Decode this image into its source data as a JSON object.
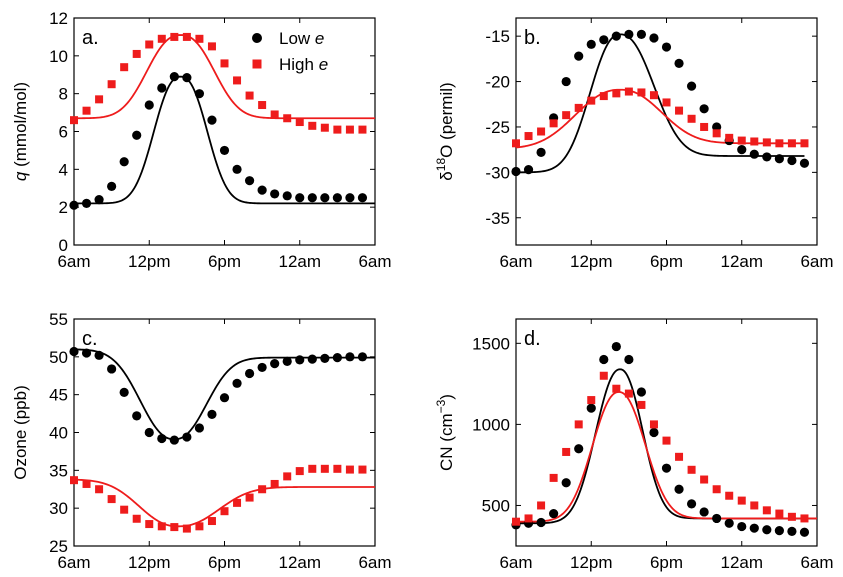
{
  "chart_data": [
    {
      "type": "line",
      "panel_label": "a.",
      "ylabel_parts": [
        "q",
        " (mmol/mol)"
      ],
      "xlim": [
        0,
        24
      ],
      "ylim": [
        0,
        12
      ],
      "yticks": [
        0,
        2,
        4,
        6,
        8,
        10,
        12
      ],
      "xticks": [
        0,
        6,
        12,
        18,
        24
      ],
      "xtick_labels": [
        "6am",
        "12pm",
        "6pm",
        "12am",
        "6am"
      ],
      "legend": {
        "position": "top-right",
        "items": [
          {
            "prefix": "Low ",
            "emph": "e",
            "marker": "circle",
            "color": "#000000"
          },
          {
            "prefix": "High ",
            "emph": "e",
            "marker": "square",
            "color": "#ee1c1c"
          }
        ]
      },
      "series": [
        {
          "id": "low",
          "marker": "circle",
          "color": "#000000",
          "x": [
            0,
            1,
            2,
            3,
            4,
            5,
            6,
            7,
            8,
            9,
            10,
            11,
            12,
            13,
            14,
            15,
            16,
            17,
            18,
            19,
            20,
            21,
            22,
            23
          ],
          "y": [
            2.1,
            2.2,
            2.4,
            3.1,
            4.4,
            5.8,
            7.4,
            8.3,
            8.9,
            8.85,
            8.0,
            6.6,
            5.0,
            4.0,
            3.4,
            2.9,
            2.7,
            2.6,
            2.5,
            2.5,
            2.5,
            2.5,
            2.5,
            2.5
          ]
        },
        {
          "id": "high",
          "marker": "square",
          "color": "#ee1c1c",
          "x": [
            0,
            1,
            2,
            3,
            4,
            5,
            6,
            7,
            8,
            9,
            10,
            11,
            12,
            13,
            14,
            15,
            16,
            17,
            18,
            19,
            20,
            21,
            22,
            23
          ],
          "y": [
            6.6,
            7.1,
            7.7,
            8.5,
            9.4,
            10.1,
            10.6,
            10.9,
            11.0,
            11.0,
            10.9,
            10.5,
            9.6,
            8.7,
            7.9,
            7.4,
            6.9,
            6.7,
            6.5,
            6.3,
            6.2,
            6.1,
            6.1,
            6.1
          ]
        }
      ],
      "fits": [
        {
          "series": "low",
          "color": "#000000",
          "base": 2.2,
          "peak": 8.9,
          "center": 8.5,
          "width": 2.7,
          "power": 2.4,
          "x_end": 24
        },
        {
          "series": "high",
          "color": "#ee1c1c",
          "base": 6.7,
          "peak": 11.1,
          "center": 8.5,
          "width": 3.4,
          "power": 2.4,
          "x_end": 24
        }
      ]
    },
    {
      "type": "line",
      "panel_label": "b.",
      "ylabel_parts": [
        "δ",
        "18",
        "O (permil)"
      ],
      "xlim": [
        0,
        24
      ],
      "ylim": [
        -38,
        -13
      ],
      "yticks": [
        -35,
        -30,
        -25,
        -20,
        -15
      ],
      "xticks": [
        0,
        6,
        12,
        18,
        24
      ],
      "xtick_labels": [
        "6am",
        "12pm",
        "6pm",
        "12am",
        "6am"
      ],
      "series": [
        {
          "id": "low",
          "marker": "circle",
          "color": "#000000",
          "x": [
            0,
            1,
            2,
            3,
            4,
            5,
            6,
            7,
            8,
            9,
            10,
            11,
            12,
            13,
            14,
            15,
            16,
            17,
            18,
            19,
            20,
            21,
            22,
            23
          ],
          "y": [
            -29.9,
            -29.7,
            -27.8,
            -24.0,
            -20.0,
            -17.2,
            -15.9,
            -15.4,
            -15.0,
            -14.8,
            -14.8,
            -15.2,
            -16.2,
            -18.0,
            -20.5,
            -23.0,
            -25.0,
            -26.5,
            -27.5,
            -28.0,
            -28.3,
            -28.5,
            -28.7,
            -29.0
          ]
        },
        {
          "id": "high",
          "marker": "square",
          "color": "#ee1c1c",
          "x": [
            0,
            1,
            2,
            3,
            4,
            5,
            6,
            7,
            8,
            9,
            10,
            11,
            12,
            13,
            14,
            15,
            16,
            17,
            18,
            19,
            20,
            21,
            22,
            23
          ],
          "y": [
            -26.8,
            -26.0,
            -25.5,
            -24.6,
            -23.7,
            -22.9,
            -22.1,
            -21.6,
            -21.3,
            -21.1,
            -21.2,
            -21.5,
            -22.3,
            -23.2,
            -24.1,
            -25.0,
            -25.7,
            -26.2,
            -26.5,
            -26.6,
            -26.7,
            -26.8,
            -26.8,
            -26.8
          ]
        }
      ],
      "fits": [
        {
          "series": "low",
          "color": "#000000",
          "base": -28.2,
          "peak": -14.8,
          "center": 8.3,
          "width": 3.5,
          "power": 2.3,
          "pre_base": -30.0,
          "pre_width": 3.1,
          "x_end": 23
        },
        {
          "series": "high",
          "color": "#ee1c1c",
          "base": -26.8,
          "peak": -20.9,
          "center": 8.3,
          "width": 4.3,
          "power": 2.3,
          "pre_base": -27.4,
          "pre_width": 4.6,
          "x_end": 23
        }
      ]
    },
    {
      "type": "line",
      "panel_label": "c.",
      "ylabel_parts": [
        "Ozone (ppb)"
      ],
      "xlim": [
        0,
        24
      ],
      "ylim": [
        25,
        55
      ],
      "yticks": [
        25,
        30,
        35,
        40,
        45,
        50,
        55
      ],
      "xticks": [
        0,
        6,
        12,
        18,
        24
      ],
      "xtick_labels": [
        "6am",
        "12pm",
        "6pm",
        "12am",
        "6am"
      ],
      "series": [
        {
          "id": "low",
          "marker": "circle",
          "color": "#000000",
          "x": [
            0,
            1,
            2,
            3,
            4,
            5,
            6,
            7,
            8,
            9,
            10,
            11,
            12,
            13,
            14,
            15,
            16,
            17,
            18,
            19,
            20,
            21,
            22,
            23
          ],
          "y": [
            50.7,
            50.5,
            50.2,
            48.4,
            45.3,
            42.2,
            40.0,
            39.2,
            39.0,
            39.4,
            40.6,
            42.4,
            44.6,
            46.5,
            47.8,
            48.6,
            49.1,
            49.4,
            49.6,
            49.7,
            49.8,
            49.9,
            50.0,
            50.0
          ]
        },
        {
          "id": "high",
          "marker": "square",
          "color": "#ee1c1c",
          "x": [
            0,
            1,
            2,
            3,
            4,
            5,
            6,
            7,
            8,
            9,
            10,
            11,
            12,
            13,
            14,
            15,
            16,
            17,
            18,
            19,
            20,
            21,
            22,
            23
          ],
          "y": [
            33.7,
            33.2,
            32.5,
            31.2,
            29.8,
            28.6,
            27.9,
            27.6,
            27.5,
            27.3,
            27.6,
            28.3,
            29.6,
            30.7,
            31.4,
            32.5,
            33.2,
            34.2,
            34.9,
            35.2,
            35.2,
            35.2,
            35.1,
            35.1
          ]
        }
      ],
      "fits": [
        {
          "series": "low",
          "color": "#000000",
          "base": 49.9,
          "peak": 39.1,
          "center": 8.0,
          "width": 3.3,
          "power": 2.3,
          "pre_base": 51.0,
          "pre_width": 3.5,
          "x_end": 24
        },
        {
          "series": "high",
          "color": "#ee1c1c",
          "base": 32.8,
          "peak": 27.6,
          "center": 8.3,
          "width": 4.2,
          "power": 2.3,
          "pre_base": 33.8,
          "pre_width": 4.0,
          "x_end": 24
        }
      ]
    },
    {
      "type": "line",
      "panel_label": "d.",
      "ylabel_parts": [
        "CN (cm",
        "−3",
        ")"
      ],
      "xlim": [
        0,
        24
      ],
      "ylim": [
        250,
        1650
      ],
      "yticks": [
        500,
        1000,
        1500
      ],
      "xticks": [
        0,
        6,
        12,
        18,
        24
      ],
      "xtick_labels": [
        "6am",
        "12pm",
        "6pm",
        "12am",
        "6am"
      ],
      "series": [
        {
          "id": "low",
          "marker": "circle",
          "color": "#000000",
          "x": [
            0,
            1,
            2,
            3,
            4,
            5,
            6,
            7,
            8,
            9,
            10,
            11,
            12,
            13,
            14,
            15,
            16,
            17,
            18,
            19,
            20,
            21,
            22,
            23
          ],
          "y": [
            380,
            390,
            395,
            450,
            640,
            850,
            1100,
            1400,
            1480,
            1400,
            1200,
            950,
            730,
            600,
            510,
            460,
            420,
            390,
            370,
            360,
            350,
            345,
            340,
            335
          ]
        },
        {
          "id": "high",
          "marker": "square",
          "color": "#ee1c1c",
          "x": [
            0,
            1,
            2,
            3,
            4,
            5,
            6,
            7,
            8,
            9,
            10,
            11,
            12,
            13,
            14,
            15,
            16,
            17,
            18,
            19,
            20,
            21,
            22,
            23
          ],
          "y": [
            400,
            420,
            500,
            670,
            830,
            1000,
            1150,
            1300,
            1220,
            1190,
            1120,
            1000,
            900,
            800,
            720,
            660,
            600,
            560,
            530,
            500,
            470,
            450,
            430,
            420
          ]
        }
      ],
      "fits": [
        {
          "series": "low",
          "color": "#000000",
          "base": 420,
          "peak": 1340,
          "center": 8.3,
          "width": 2.4,
          "power": 2.2,
          "pre_base": 390,
          "pre_width": 2.6,
          "x_end": 24
        },
        {
          "series": "high",
          "color": "#ee1c1c",
          "base": 420,
          "peak": 1200,
          "center": 8.2,
          "width": 2.8,
          "power": 2.2,
          "pre_base": 400,
          "pre_width": 2.8,
          "x_end": 24
        }
      ]
    }
  ]
}
